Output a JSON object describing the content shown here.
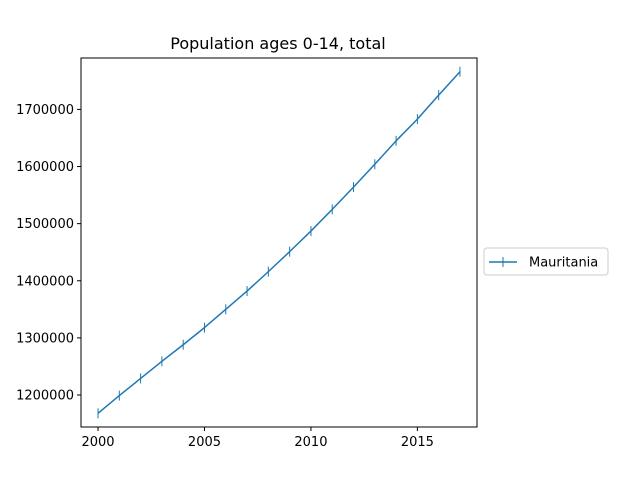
{
  "chart_data": {
    "type": "line",
    "title": "Population ages 0-14, total",
    "xlabel": "",
    "ylabel": "",
    "x": [
      2000,
      2001,
      2002,
      2003,
      2004,
      2005,
      2006,
      2007,
      2008,
      2009,
      2010,
      2011,
      2012,
      2013,
      2014,
      2015,
      2016,
      2017
    ],
    "series": [
      {
        "name": "Mauritania",
        "color": "#1f77b4",
        "marker": "vline",
        "values": [
          1168000,
          1199000,
          1229000,
          1259000,
          1288000,
          1318000,
          1350000,
          1382000,
          1416000,
          1451000,
          1487000,
          1525000,
          1564000,
          1604000,
          1645000,
          1683000,
          1725000,
          1766000
        ]
      }
    ],
    "xlim": [
      1999.2,
      2017.8
    ],
    "ylim": [
      1144000,
      1790000
    ],
    "xticks": [
      2000,
      2005,
      2010,
      2015
    ],
    "xtick_labels": [
      "2000",
      "2005",
      "2010",
      "2015"
    ],
    "yticks": [
      1200000,
      1300000,
      1400000,
      1500000,
      1600000,
      1700000
    ],
    "ytick_labels": [
      "1200000",
      "1300000",
      "1400000",
      "1500000",
      "1600000",
      "1700000"
    ],
    "grid": false,
    "legend_position": "outside-right"
  }
}
